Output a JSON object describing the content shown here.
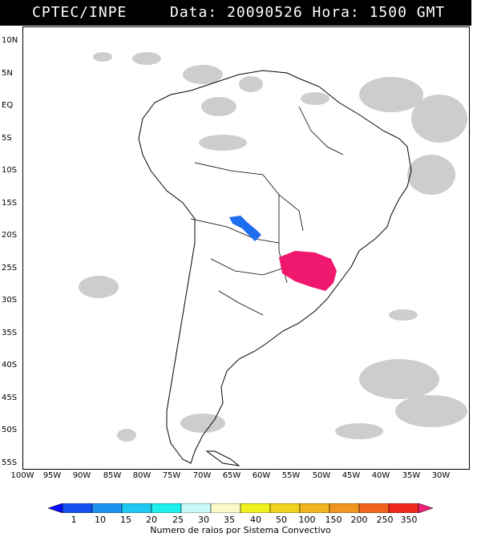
{
  "header": {
    "left_text": "CPTEC/INPE",
    "right_text": "Data: 20090526 Hora: 1500 GMT",
    "background": "#000000",
    "text_color": "#ffffff"
  },
  "map": {
    "region": "South America",
    "lat_labels": [
      "10N",
      "5N",
      "EQ",
      "5S",
      "10S",
      "15S",
      "20S",
      "25S",
      "30S",
      "35S",
      "40S",
      "45S",
      "50S",
      "55S"
    ],
    "lon_labels": [
      "100W",
      "95W",
      "90W",
      "85W",
      "80W",
      "75W",
      "70W",
      "65W",
      "60W",
      "55W",
      "50W",
      "45W",
      "40W",
      "35W",
      "30W"
    ],
    "cloud_color": "#c8c8c8",
    "systems": [
      {
        "name": "convective-system-blue",
        "color": "#1e6cf0"
      },
      {
        "name": "convective-system-magenta",
        "color": "#f0186e"
      }
    ]
  },
  "colorbar": {
    "title": "Numero de raios por Sistema Convectivo",
    "labels": [
      "1",
      "10",
      "15",
      "20",
      "25",
      "30",
      "35",
      "40",
      "50",
      "100",
      "150",
      "200",
      "250",
      "350"
    ],
    "colors": [
      "#0a0aff",
      "#1450f0",
      "#1e90f0",
      "#1ec8f0",
      "#1ef0f0",
      "#c8fafa",
      "#fafac8",
      "#f0f01e",
      "#f0d21e",
      "#f0b41e",
      "#f0961e",
      "#f0641e",
      "#f0281e",
      "#f01e78"
    ]
  }
}
